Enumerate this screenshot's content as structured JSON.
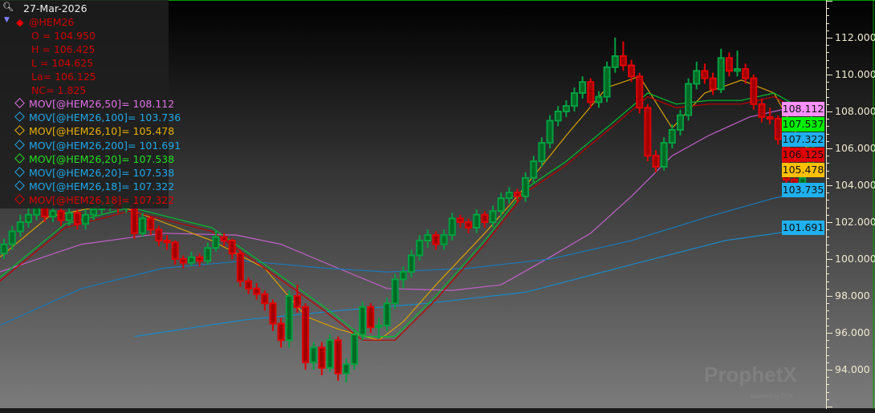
{
  "header": {
    "date": "27-Mar-2026",
    "symbol": "@HEM26"
  },
  "quote": {
    "open": "O = 104.950",
    "high": "H = 106.425",
    "low": "L = 104.625",
    "last": "La= 106.125",
    "net_change": "NC= 1.825"
  },
  "legend": [
    {
      "label": "MOV[@HEM26,50]= 108.112",
      "color": "#e070e8"
    },
    {
      "label": "MOV[@HEM26,100]= 103.736",
      "color": "#1fa8e8"
    },
    {
      "label": "MOV[@HEM26,10]= 105.478",
      "color": "#e8b000"
    },
    {
      "label": "MOV[@HEM26,200]= 101.691",
      "color": "#1fa8e8"
    },
    {
      "label": "MOV[@HEM26,20]= 107.538",
      "color": "#20e020"
    },
    {
      "label": "MOV[@HEM26,20]= 107.538",
      "color": "#1fa8e8"
    },
    {
      "label": "MOV[@HEM26,18]= 107.322",
      "color": "#1fa8e8"
    },
    {
      "label": "MOV[@HEM26,18]= 107.322",
      "color": "#e00000"
    }
  ],
  "price_boxes": [
    {
      "value": "101.691",
      "price": 101.691,
      "bg": "#1fb0f0"
    },
    {
      "value": "103.735",
      "price": 103.735,
      "bg": "#1fb0f0"
    },
    {
      "value": "105.478",
      "price": 105.478,
      "bg": "#ffc000"
    },
    {
      "value": "106.125",
      "price": 106.125,
      "bg": "#e00000"
    },
    {
      "value": "107.322",
      "price": 107.322,
      "bg": "#1fb0f0"
    },
    {
      "value": "107.537",
      "price": 107.537,
      "bg": "#00f000"
    },
    {
      "value": "108.112",
      "price": 108.112,
      "bg": "#ff90ff"
    }
  ],
  "watermark": "ProphetX powered by DTN",
  "chart_data": {
    "type": "candlestick",
    "ylim": [
      91.7,
      114
    ],
    "y_ticks": [
      "94.000",
      "96.000",
      "98.000",
      "100.000",
      "102.000",
      "104.000",
      "106.000",
      "108.000",
      "110.000",
      "112.000"
    ],
    "candle_colors": {
      "up": "#00a040",
      "down": "#e00000"
    },
    "candles": [
      [
        100.3,
        101.1,
        100.0,
        100.8
      ],
      [
        100.8,
        101.8,
        100.5,
        101.5
      ],
      [
        101.5,
        102.4,
        101.2,
        102.0
      ],
      [
        102.0,
        102.8,
        101.7,
        102.4
      ],
      [
        102.4,
        103.1,
        102.1,
        102.8
      ],
      [
        102.8,
        103.0,
        102.0,
        102.3
      ],
      [
        102.3,
        103.0,
        102.0,
        102.6
      ],
      [
        102.6,
        102.9,
        101.8,
        102.1
      ],
      [
        102.1,
        102.8,
        101.8,
        102.5
      ],
      [
        102.5,
        102.7,
        101.6,
        101.9
      ],
      [
        101.9,
        102.7,
        101.6,
        102.4
      ],
      [
        102.4,
        103.0,
        102.1,
        102.7
      ],
      [
        102.7,
        103.2,
        102.4,
        102.9
      ],
      [
        102.9,
        103.4,
        102.6,
        103.1
      ],
      [
        103.1,
        103.3,
        102.5,
        102.8
      ],
      [
        102.8,
        103.3,
        102.5,
        103.0
      ],
      [
        103.0,
        103.1,
        101.1,
        101.4
      ],
      [
        101.4,
        102.5,
        101.2,
        102.2
      ],
      [
        102.2,
        102.3,
        101.3,
        101.6
      ],
      [
        101.6,
        101.8,
        100.7,
        101.0
      ],
      [
        101.0,
        101.3,
        100.5,
        100.9
      ],
      [
        100.9,
        101.0,
        99.7,
        100.0
      ],
      [
        100.0,
        100.2,
        99.5,
        99.8
      ],
      [
        99.8,
        100.4,
        99.6,
        100.1
      ],
      [
        100.1,
        100.3,
        99.6,
        99.9
      ],
      [
        99.9,
        100.9,
        99.7,
        100.6
      ],
      [
        100.6,
        101.5,
        100.4,
        101.2
      ],
      [
        101.2,
        101.4,
        100.7,
        101.0
      ],
      [
        101.0,
        101.1,
        100.0,
        100.3
      ],
      [
        100.3,
        100.5,
        98.5,
        98.8
      ],
      [
        98.8,
        99.0,
        98.1,
        98.4
      ],
      [
        98.4,
        98.7,
        97.8,
        98.1
      ],
      [
        98.1,
        98.3,
        97.2,
        97.6
      ],
      [
        97.6,
        97.8,
        96.1,
        96.5
      ],
      [
        96.5,
        96.8,
        95.2,
        95.6
      ],
      [
        95.6,
        98.3,
        95.2,
        98.0
      ],
      [
        98.0,
        98.6,
        97.1,
        97.4
      ],
      [
        97.4,
        97.6,
        94.0,
        94.4
      ],
      [
        94.4,
        95.5,
        94.0,
        95.2
      ],
      [
        95.2,
        95.5,
        93.7,
        94.1
      ],
      [
        94.1,
        95.9,
        93.9,
        95.6
      ],
      [
        95.6,
        95.8,
        93.4,
        93.8
      ],
      [
        93.8,
        94.6,
        93.3,
        94.3
      ],
      [
        94.3,
        96.2,
        94.0,
        95.9
      ],
      [
        95.9,
        97.7,
        95.6,
        97.4
      ],
      [
        97.4,
        97.6,
        96.0,
        96.3
      ],
      [
        96.3,
        96.8,
        95.7,
        96.4
      ],
      [
        96.4,
        97.9,
        96.1,
        97.6
      ],
      [
        97.6,
        99.2,
        97.3,
        98.9
      ],
      [
        98.9,
        99.6,
        98.4,
        99.3
      ],
      [
        99.3,
        100.5,
        99.0,
        100.2
      ],
      [
        100.2,
        101.3,
        99.9,
        101.0
      ],
      [
        101.0,
        101.6,
        100.6,
        101.3
      ],
      [
        101.3,
        101.5,
        100.5,
        100.8
      ],
      [
        100.8,
        101.6,
        100.5,
        101.3
      ],
      [
        101.3,
        102.5,
        101.0,
        102.2
      ],
      [
        102.2,
        102.4,
        101.7,
        102.0
      ],
      [
        102.0,
        102.2,
        101.4,
        101.7
      ],
      [
        101.7,
        102.7,
        101.4,
        102.4
      ],
      [
        102.4,
        102.6,
        101.7,
        102.0
      ],
      [
        102.0,
        102.9,
        101.7,
        102.6
      ],
      [
        102.6,
        103.6,
        102.3,
        103.3
      ],
      [
        103.3,
        103.9,
        103.0,
        103.6
      ],
      [
        103.6,
        103.8,
        103.1,
        103.4
      ],
      [
        103.4,
        104.7,
        103.1,
        104.4
      ],
      [
        104.4,
        105.6,
        104.1,
        105.3
      ],
      [
        105.3,
        106.6,
        105.0,
        106.3
      ],
      [
        106.3,
        107.8,
        106.0,
        107.5
      ],
      [
        107.5,
        108.3,
        107.2,
        108.0
      ],
      [
        108.0,
        108.6,
        107.7,
        108.3
      ],
      [
        108.3,
        109.3,
        108.0,
        109.0
      ],
      [
        109.0,
        109.9,
        108.7,
        109.6
      ],
      [
        109.6,
        109.8,
        108.2,
        108.5
      ],
      [
        108.5,
        109.1,
        108.2,
        108.8
      ],
      [
        108.8,
        110.7,
        108.5,
        110.4
      ],
      [
        110.4,
        112.0,
        110.1,
        111.0
      ],
      [
        111.0,
        111.8,
        110.2,
        110.5
      ],
      [
        110.5,
        110.8,
        109.6,
        109.9
      ],
      [
        109.9,
        110.1,
        107.9,
        108.2
      ],
      [
        108.2,
        108.4,
        105.3,
        105.6
      ],
      [
        105.6,
        105.9,
        104.7,
        105.0
      ],
      [
        105.0,
        106.6,
        104.8,
        106.3
      ],
      [
        106.3,
        107.3,
        106.0,
        107.0
      ],
      [
        107.0,
        108.1,
        106.7,
        107.8
      ],
      [
        107.8,
        109.8,
        107.5,
        109.5
      ],
      [
        109.5,
        110.7,
        109.2,
        110.2
      ],
      [
        110.2,
        110.6,
        109.5,
        109.8
      ],
      [
        109.8,
        110.1,
        108.9,
        109.2
      ],
      [
        109.2,
        111.4,
        109.0,
        110.9
      ],
      [
        110.9,
        111.2,
        109.9,
        110.2
      ],
      [
        110.2,
        111.3,
        109.9,
        110.3
      ],
      [
        110.3,
        110.6,
        109.5,
        109.8
      ],
      [
        109.8,
        110.0,
        108.1,
        108.4
      ],
      [
        108.4,
        108.7,
        107.4,
        107.7
      ],
      [
        107.7,
        108.2,
        107.3,
        107.6
      ],
      [
        107.6,
        107.8,
        106.2,
        106.5
      ],
      [
        106.5,
        106.7,
        104.0,
        104.3
      ],
      [
        104.3,
        104.6,
        103.5,
        104.1
      ],
      [
        104.1,
        104.9,
        103.8,
        104.4
      ],
      [
        104.95,
        106.425,
        104.625,
        106.125
      ]
    ],
    "moving_averages": [
      {
        "name": "MOV[@HEM26,50]",
        "color": "#c060c8",
        "points": [
          [
            -0.5,
            99.3
          ],
          [
            9.5,
            100.8
          ],
          [
            19.5,
            101.4
          ],
          [
            28.5,
            101.3
          ],
          [
            34,
            100.8
          ],
          [
            41,
            99.5
          ],
          [
            47,
            98.4
          ],
          [
            55,
            98.3
          ],
          [
            61,
            98.6
          ],
          [
            67,
            100.1
          ],
          [
            72,
            101.4
          ],
          [
            77,
            103.4
          ],
          [
            82,
            105.6
          ],
          [
            86.5,
            106.7
          ],
          [
            91.5,
            107.7
          ],
          [
            96.5,
            108.2
          ],
          [
            99.5,
            108.112
          ]
        ]
      },
      {
        "name": "MOV[@HEM26,100]",
        "color": "#1a78b8",
        "points": [
          [
            -0.5,
            96.4
          ],
          [
            9.5,
            98.4
          ],
          [
            19.5,
            99.5
          ],
          [
            29.5,
            99.9
          ],
          [
            39.5,
            99.5
          ],
          [
            47,
            99.3
          ],
          [
            57,
            99.5
          ],
          [
            67,
            100.0
          ],
          [
            77,
            101.0
          ],
          [
            86.5,
            102.3
          ],
          [
            94.5,
            103.3
          ],
          [
            99.5,
            103.736
          ]
        ]
      },
      {
        "name": "MOV[@HEM26,200]",
        "color": "#1a88c8",
        "points": [
          [
            16,
            95.8
          ],
          [
            29.5,
            96.7
          ],
          [
            41,
            97.2
          ],
          [
            52,
            97.6
          ],
          [
            64,
            98.2
          ],
          [
            77,
            99.7
          ],
          [
            88.5,
            101.0
          ],
          [
            99.5,
            101.691
          ]
        ]
      },
      {
        "name": "MOV[@HEM26,10]",
        "color": "#d8a000",
        "points": [
          [
            -0.5,
            100.1
          ],
          [
            5.5,
            102.3
          ],
          [
            13.5,
            103.0
          ],
          [
            19.5,
            102.0
          ],
          [
            25.5,
            101.0
          ],
          [
            32,
            99.5
          ],
          [
            37,
            96.9
          ],
          [
            41,
            96.2
          ],
          [
            46,
            95.6
          ],
          [
            49,
            96.6
          ],
          [
            53,
            98.6
          ],
          [
            59,
            101.4
          ],
          [
            63,
            103.4
          ],
          [
            69,
            106.7
          ],
          [
            74,
            109.3
          ],
          [
            78,
            109.9
          ],
          [
            82,
            107.1
          ],
          [
            86,
            109.0
          ],
          [
            90.5,
            109.7
          ],
          [
            94.5,
            109.0
          ],
          [
            97.5,
            106.6
          ],
          [
            99.5,
            105.478
          ]
        ]
      },
      {
        "name": "MOV[@HEM26,18]",
        "color": "#c00000",
        "points": [
          [
            -0.5,
            98.8
          ],
          [
            7.5,
            101.7
          ],
          [
            15.5,
            102.6
          ],
          [
            25.5,
            101.5
          ],
          [
            32,
            99.5
          ],
          [
            39,
            97.3
          ],
          [
            44,
            95.6
          ],
          [
            48,
            95.6
          ],
          [
            53,
            97.8
          ],
          [
            59,
            100.8
          ],
          [
            64,
            103.6
          ],
          [
            69,
            105.1
          ],
          [
            75,
            107.3
          ],
          [
            79,
            108.8
          ],
          [
            82.5,
            108.2
          ],
          [
            86.5,
            108.4
          ],
          [
            90.5,
            108.4
          ],
          [
            94.5,
            108.8
          ],
          [
            98.5,
            107.8
          ],
          [
            99.5,
            107.322
          ]
        ]
      },
      {
        "name": "MOV[@HEM26,20]",
        "color": "#00c030",
        "points": [
          [
            -0.5,
            99.0
          ],
          [
            7.5,
            101.9
          ],
          [
            15.5,
            102.8
          ],
          [
            25.5,
            101.7
          ],
          [
            32,
            99.7
          ],
          [
            39,
            97.5
          ],
          [
            44,
            95.8
          ],
          [
            48,
            95.8
          ],
          [
            53,
            98.0
          ],
          [
            59,
            101.0
          ],
          [
            64,
            103.8
          ],
          [
            69,
            105.3
          ],
          [
            75,
            107.5
          ],
          [
            79,
            109.0
          ],
          [
            82.5,
            108.4
          ],
          [
            86.5,
            108.6
          ],
          [
            90.5,
            108.6
          ],
          [
            94.5,
            109.0
          ],
          [
            98.5,
            108.0
          ],
          [
            99.5,
            107.538
          ]
        ]
      }
    ]
  }
}
